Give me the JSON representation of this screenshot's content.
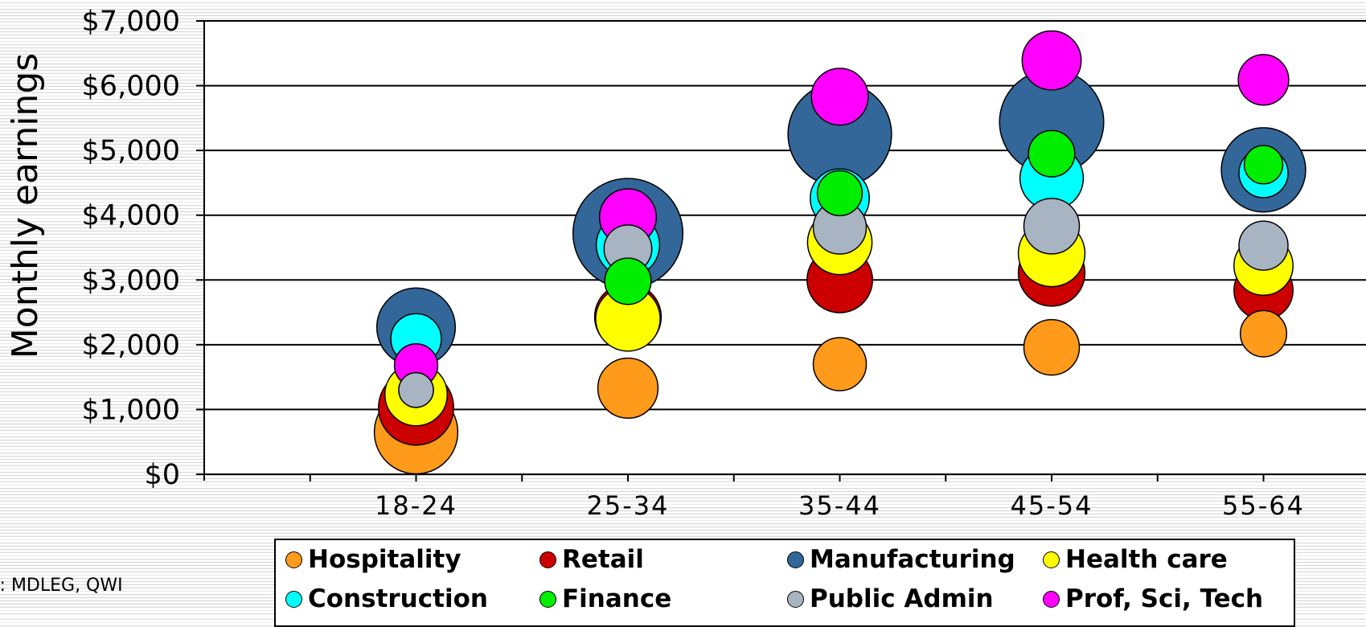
{
  "chart_data": {
    "type": "bubble",
    "ylabel": "Monthly earnings",
    "ylim": [
      0,
      7000
    ],
    "yticks": [
      {
        "value": 0,
        "label": "$0"
      },
      {
        "value": 1000,
        "label": "$1,000"
      },
      {
        "value": 2000,
        "label": "$2,000"
      },
      {
        "value": 3000,
        "label": "$3,000"
      },
      {
        "value": 4000,
        "label": "$4,000"
      },
      {
        "value": 5000,
        "label": "$5,000"
      },
      {
        "value": 6000,
        "label": "$6,000"
      },
      {
        "value": 7000,
        "label": "$7,000"
      }
    ],
    "categories": [
      "18-24",
      "25-34",
      "35-44",
      "45-54",
      "55-64"
    ],
    "grid": true,
    "legend_position": "bottom",
    "size_note": "bubble size proportional to relative employment (largest = 1.0)",
    "series": [
      {
        "name": "Hospitality",
        "color": "#ff9a1a",
        "values": [
          650,
          1330,
          1700,
          1960,
          2170
        ],
        "sizes": [
          0.52,
          0.27,
          0.21,
          0.23,
          0.16
        ]
      },
      {
        "name": "Retail",
        "color": "#cc0000",
        "values": [
          1030,
          2430,
          3000,
          3110,
          2840
        ],
        "sizes": [
          0.42,
          0.33,
          0.32,
          0.33,
          0.26
        ]
      },
      {
        "name": "Manufacturing",
        "color": "#336699",
        "values": [
          2270,
          3720,
          5250,
          5440,
          4700
        ],
        "sizes": [
          0.46,
          0.9,
          0.8,
          0.81,
          0.53
        ]
      },
      {
        "name": "Health care",
        "color": "#ffff00",
        "values": [
          1230,
          2400,
          3580,
          3410,
          3220
        ],
        "sizes": [
          0.29,
          0.31,
          0.31,
          0.33,
          0.26
        ]
      },
      {
        "name": "Construction",
        "color": "#00ffff",
        "values": [
          2090,
          3540,
          4260,
          4570,
          4650
        ],
        "sizes": [
          0.19,
          0.3,
          0.26,
          0.3,
          0.18
        ]
      },
      {
        "name": "Finance",
        "color": "#00ee00",
        "values": [
          null,
          2980,
          4340,
          4950,
          4780
        ],
        "sizes": [
          0,
          0.16,
          0.15,
          0.16,
          0.11
        ]
      },
      {
        "name": "Public Admin",
        "color": "#a9b4c2",
        "values": [
          1300,
          3480,
          3810,
          3830,
          3530
        ],
        "sizes": [
          0.09,
          0.17,
          0.21,
          0.23,
          0.18
        ]
      },
      {
        "name": "Prof, Sci, Tech",
        "color": "#ff00ff",
        "values": [
          1680,
          3970,
          5830,
          6390,
          6090
        ],
        "sizes": [
          0.14,
          0.24,
          0.24,
          0.26,
          0.19
        ]
      }
    ]
  },
  "source_text": "e:   MDLEG, QWI"
}
